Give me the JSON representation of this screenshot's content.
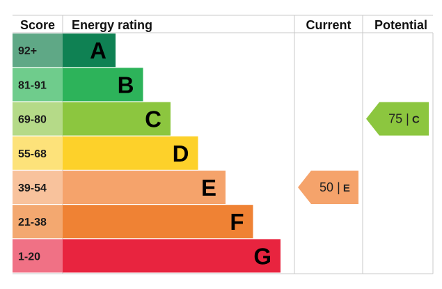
{
  "headers": {
    "score": "Score",
    "energy_rating": "Energy rating",
    "current": "Current",
    "potential": "Potential"
  },
  "chart_data": {
    "type": "bar",
    "bands": [
      {
        "letter": "A",
        "range": "92+",
        "color": "#0f8153",
        "score_color": "#5fa886"
      },
      {
        "letter": "B",
        "range": "81-91",
        "color": "#2db35a",
        "score_color": "#6fcc8c"
      },
      {
        "letter": "C",
        "range": "69-80",
        "color": "#8cc63f",
        "score_color": "#b5da88"
      },
      {
        "letter": "D",
        "range": "55-68",
        "color": "#fdd12a",
        "score_color": "#fde27a"
      },
      {
        "letter": "E",
        "range": "39-54",
        "color": "#f5a36b",
        "score_color": "#f8c29c"
      },
      {
        "letter": "F",
        "range": "21-38",
        "color": "#ef8234",
        "score_color": "#f3a870"
      },
      {
        "letter": "G",
        "range": "1-20",
        "color": "#e8243f",
        "score_color": "#f07185"
      }
    ],
    "current": {
      "value": 50,
      "band": "E",
      "label": "50 | E",
      "color": "#f5a36b"
    },
    "potential": {
      "value": 75,
      "band": "C",
      "label": "75 | C",
      "color": "#8cc63f"
    }
  }
}
